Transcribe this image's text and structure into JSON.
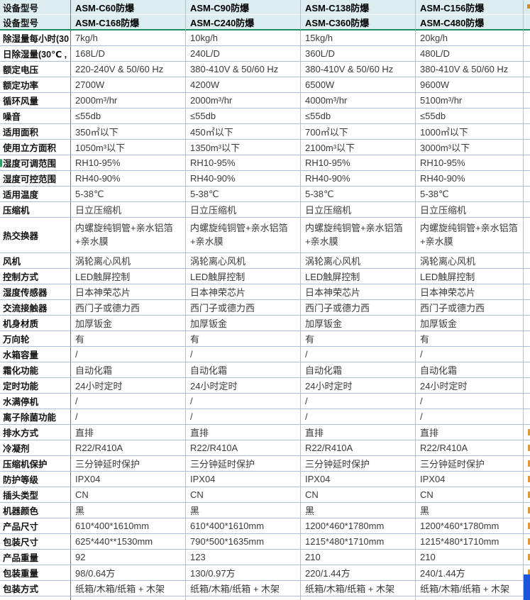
{
  "table": {
    "header": {
      "label": "设备型号",
      "row1_models": [
        "ASM-C60防爆",
        "ASM-C90防爆",
        "ASM-C138防爆",
        "ASM-C156防爆"
      ],
      "row2_models": [
        "ASM-C168防爆",
        "ASM-C240防爆",
        "ASM-C360防爆",
        "ASM-C480防爆"
      ]
    },
    "rows": [
      {
        "label": "除湿量每小时(30",
        "values": [
          "7kg/h",
          "10kg/h",
          "15kg/h",
          "20kg/h"
        ]
      },
      {
        "label": "日除湿量(30℃ ,",
        "values": [
          "168L/D",
          "240L/D",
          "360L/D",
          "480L/D"
        ]
      },
      {
        "label": "额定电压",
        "values": [
          "220-240V & 50/60 Hz",
          "380-410V & 50/60 Hz",
          "380-410V & 50/60 Hz",
          "380-410V & 50/60 Hz"
        ]
      },
      {
        "label": "额定功率",
        "values": [
          "2700W",
          "4200W",
          "6500W",
          "9600W"
        ]
      },
      {
        "label": "循环风量",
        "values": [
          "2000m³/hr",
          "2000m³/hr",
          "4000m³/hr",
          "5100m³/hr"
        ]
      },
      {
        "label": "噪音",
        "values": [
          "≤55db",
          "≤55db",
          "≤55db",
          "≤55db"
        ]
      },
      {
        "label": "适用面积",
        "values": [
          "350㎡以下",
          "450㎡以下",
          "700㎡以下",
          "1000㎡以下"
        ]
      },
      {
        "label": "使用立方面积",
        "values": [
          "1050m³以下",
          "1350m³以下",
          "2100m³以下",
          "3000m³以下"
        ]
      },
      {
        "label": "湿度可调范围",
        "values": [
          "RH10-95%",
          "RH10-95%",
          "RH10-95%",
          "RH10-95%"
        ],
        "green_left": true
      },
      {
        "label": "湿度可控范围",
        "values": [
          "RH40-90%",
          "RH40-90%",
          "RH40-90%",
          "RH40-90%"
        ]
      },
      {
        "label": "适用温度",
        "values": [
          "5-38℃",
          "5-38℃",
          "5-38℃",
          "5-38℃"
        ]
      },
      {
        "label": "压缩机",
        "values": [
          "日立压缩机",
          "日立压缩机",
          "日立压缩机",
          "日立压缩机"
        ]
      },
      {
        "label": "热交换器",
        "values": [
          "内螺旋纯铜管+亲水铝箔+亲水膜",
          "内螺旋纯铜管+亲水铝箔+亲水膜",
          "内螺旋纯铜管+亲水铝箔+亲水膜",
          "内螺旋纯铜管+亲水铝箔+亲水膜"
        ],
        "tall": true
      },
      {
        "label": "风机",
        "values": [
          "涡轮离心风机",
          "涡轮离心风机",
          "涡轮离心风机",
          "涡轮离心风机"
        ]
      },
      {
        "label": "控制方式",
        "values": [
          "LED触屏控制",
          "LED触屏控制",
          "LED触屏控制",
          "LED触屏控制"
        ]
      },
      {
        "label": "湿度传感器",
        "values": [
          "日本神荣芯片",
          "日本神荣芯片",
          "日本神荣芯片",
          "日本神荣芯片"
        ]
      },
      {
        "label": "交流接触器",
        "values": [
          "西门子或德力西",
          "西门子或德力西",
          "西门子或德力西",
          "西门子或德力西"
        ]
      },
      {
        "label": "机身材质",
        "values": [
          "加厚钣金",
          "加厚钣金",
          "加厚钣金",
          "加厚钣金"
        ]
      },
      {
        "label": "万向轮",
        "values": [
          "有",
          "有",
          "有",
          "有"
        ]
      },
      {
        "label": "水箱容量",
        "values": [
          "/",
          "/",
          "/",
          "/"
        ]
      },
      {
        "label": "霜化功能",
        "values": [
          "自动化霜",
          "自动化霜",
          "自动化霜",
          "自动化霜"
        ]
      },
      {
        "label": "定时功能",
        "values": [
          "24小时定时",
          "24小时定时",
          "24小时定时",
          "24小时定时"
        ]
      },
      {
        "label": "水满停机",
        "values": [
          "/",
          "/",
          "/",
          "/"
        ]
      },
      {
        "label": "离子除菌功能",
        "values": [
          "/",
          "/",
          "/",
          "/"
        ]
      },
      {
        "label": "排水方式",
        "values": [
          "直排",
          "直排",
          "直排",
          "直排"
        ],
        "edge_orange": true
      },
      {
        "label": "冷凝剂",
        "values": [
          "R22/R410A",
          "R22/R410A",
          "R22/R410A",
          "R22/R410A"
        ],
        "edge_orange": true
      },
      {
        "label": "压缩机保护",
        "values": [
          "三分钟延时保护",
          "三分钟延时保护",
          "三分钟延时保护",
          "三分钟延时保护"
        ],
        "edge_orange": true
      },
      {
        "label": "防护等级",
        "values": [
          "IPX04",
          "IPX04",
          "IPX04",
          "IPX04"
        ],
        "edge_orange": true
      },
      {
        "label": "插头类型",
        "values": [
          "CN",
          "CN",
          "CN",
          "CN"
        ],
        "edge_orange": true
      },
      {
        "label": "机器颜色",
        "values": [
          "黑",
          "黑",
          "黑",
          "黑"
        ],
        "edge_orange": true
      },
      {
        "label": "产品尺寸",
        "values": [
          "610*400*1610mm",
          "610*400*1610mm",
          "1200*460*1780mm",
          "1200*460*1780mm"
        ],
        "edge_orange": true
      },
      {
        "label": "包装尺寸",
        "values": [
          "625*440**1530mm",
          "790*500*1635mm",
          "1215*480*1710mm",
          "1215*480*1710mm"
        ],
        "edge_orange": true
      },
      {
        "label": "产品重量",
        "values": [
          "92",
          "123",
          "210",
          "210"
        ],
        "edge_orange": true
      },
      {
        "label": "包装重量",
        "values": [
          "98/0.64方",
          "130/0.97方",
          "220/1.44方",
          "240/1.44方"
        ],
        "edge_orange": true
      },
      {
        "label": "包装方式",
        "values": [
          "纸箱/木箱/纸箱 + 木架",
          "纸箱/木箱/纸箱 + 木架",
          "纸箱/木箱/纸箱 + 木架",
          "纸箱/木箱/纸箱 + 木架"
        ]
      }
    ]
  },
  "colors": {
    "header_bg": "#dcedf1",
    "grid_line": "#b2bbd9",
    "green_divider": "#2f9e63",
    "header_bottom_border": "#1d8a5f",
    "selection_blue": "#1b55d9",
    "fragment_orange": "#e2973a",
    "body_text": "#3a3a3a"
  }
}
